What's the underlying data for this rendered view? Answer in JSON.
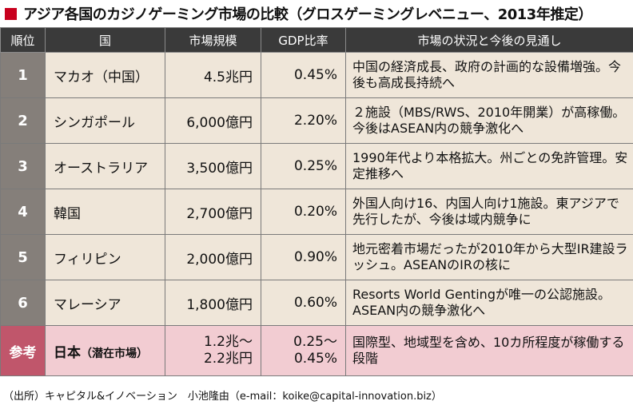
{
  "title": "アジア各国のカジノゲーミング市場の比較（グロスゲーミングレベニュー、2013年推定）",
  "header": [
    "順位",
    "国",
    "市場規模",
    "GDP比率",
    "市場の状況と今後の見通し"
  ],
  "rows": [
    {
      "rank": "1",
      "country": "マカオ（中国）",
      "market": "4.5兆円",
      "gdp": "0.45%",
      "note": "中国の経済成長、政府の計画的な設備増強。今後も高成長持続へ"
    },
    {
      "rank": "2",
      "country": "シンガポール",
      "market": "6,000億円",
      "gdp": "2.20%",
      "note": "２施設（MBS/RWS、2010年開業）が高稼働。今後はASEAN内の競争激化へ"
    },
    {
      "rank": "3",
      "country": "オーストラリア",
      "market": "3,500億円",
      "gdp": "0.25%",
      "note": "1990年代より本格拡大。州ごとの免許管理。安定推移へ"
    },
    {
      "rank": "4",
      "country": "韓国",
      "market": "2,700億円",
      "gdp": "0.20%",
      "note": "外国人向け16、内国人向け1施設。東アジアで先行したが、今後は域内競争に"
    },
    {
      "rank": "5",
      "country": "フィリピン",
      "market": "2,000億円",
      "gdp": "0.90%",
      "note": "地元密着市場だったが2010年から大型IR建設ラッシュ。ASEANのIRの核に"
    },
    {
      "rank": "6",
      "country": "マレーシア",
      "market": "1,800億円",
      "gdp": "0.60%",
      "note": "Resorts World Gentingが唯一の公認施設。ASEAN内の競争激化へ"
    }
  ],
  "reference": {
    "rank": "参考",
    "country": "日本",
    "country_note": "（潜在市場）",
    "market_line1": "1.2兆～",
    "market_line2": "2.2兆円",
    "gdp_line1": "0.25～",
    "gdp_line2": "0.45%",
    "note": "国際型、地域型を含め、10カ所程度が稼働する段階"
  },
  "source": "（出所）キャピタル&イノベーション　小池隆由（e-mail：koike@capital-innovation.biz）",
  "colors": {
    "accent": "#c8001e",
    "header_bg": "#3a3a3a",
    "rank_bg": "#857f7a",
    "row_bg": "#efe6d9",
    "ref_bg": "#f2ccd2",
    "ref_rank_bg": "#c0566b"
  }
}
